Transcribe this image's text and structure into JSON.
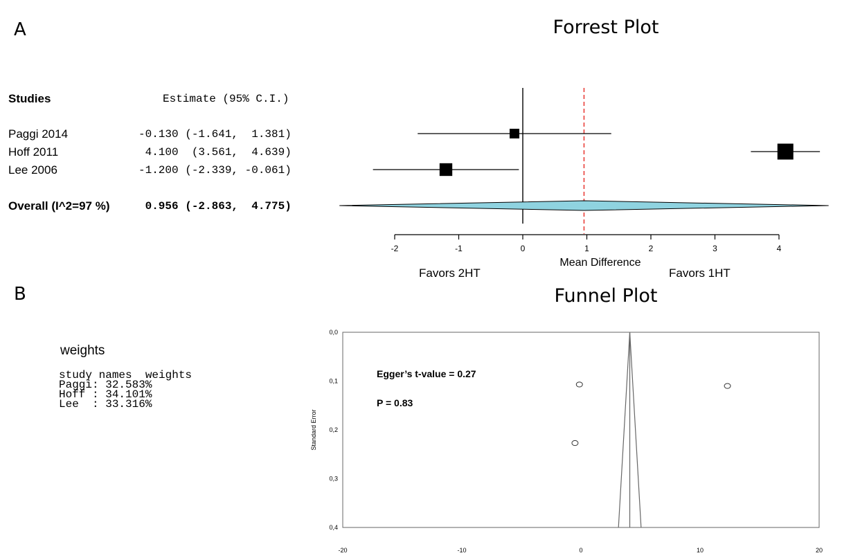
{
  "panel_a": {
    "letter": "A",
    "title": "Forrest Plot",
    "header_studies": "Studies",
    "header_estimate": "Estimate (95% C.I.)",
    "rows": [
      {
        "study": "Paggi 2014",
        "estimate_text": "-0.130 (-1.641,  1.381)"
      },
      {
        "study": "Hoff 2011",
        "estimate_text": " 4.100  (3.561,  4.639)"
      },
      {
        "study": "Lee 2006",
        "estimate_text": "-1.200 (-2.339, -0.061)"
      }
    ],
    "overall_label": "Overall (I^2=97 %)",
    "overall_text": " 0.956 (-2.863,  4.775)",
    "favors_left": "Favors 2HT",
    "favors_right": "Favors 1HT"
  },
  "panel_b": {
    "letter": "B",
    "title": "Funnel Plot",
    "weights_title": "weights",
    "weights_lines": [
      "study names  weights",
      "Paggi: 32.583%",
      "Hoff : 34.101%",
      "Lee  : 33.316%"
    ],
    "egger": "Egger’s t-value = 0.27",
    "p_value": "P = 0.83"
  },
  "chart_data": [
    {
      "type": "forest",
      "title": "Forrest Plot",
      "xlabel": "Mean Difference",
      "xlim": [
        -2,
        4
      ],
      "x_ticks": [
        "-2",
        "-1",
        "0",
        "1",
        "2",
        "3",
        "4"
      ],
      "studies": [
        {
          "name": "Paggi 2014",
          "estimate": -0.13,
          "lower": -1.641,
          "upper": 1.381,
          "weight": 32.583
        },
        {
          "name": "Hoff 2011",
          "estimate": 4.1,
          "lower": 3.561,
          "upper": 4.639,
          "weight": 34.101
        },
        {
          "name": "Lee 2006",
          "estimate": -1.2,
          "lower": -2.339,
          "upper": -0.061,
          "weight": 33.316
        }
      ],
      "overall": {
        "estimate": 0.956,
        "lower": -2.863,
        "upper": 4.775
      },
      "colors": {
        "diamond": "#8fd3e0",
        "reference_line": "#e8342e"
      }
    },
    {
      "type": "scatter",
      "title": "Funnel Plot",
      "ylabel": "Standard Error",
      "xlim": [
        -20,
        20
      ],
      "ylim": [
        0.0,
        0.4
      ],
      "y_reversed": true,
      "x_ticks": [
        "-20",
        "-10",
        "0",
        "10",
        "20"
      ],
      "y_ticks": [
        "0,0",
        "0,1",
        "0,2",
        "0,3",
        "0,4"
      ],
      "points": [
        {
          "x": -0.13,
          "y": 0.107
        },
        {
          "x": 12.3,
          "y": 0.11
        },
        {
          "x": -0.5,
          "y": 0.227
        }
      ],
      "funnel_center": 4.1,
      "funnel_base": [
        3.15,
        5.05
      ],
      "annotations": [
        "Egger’s t-value = 0.27",
        "P = 0.83"
      ]
    }
  ]
}
